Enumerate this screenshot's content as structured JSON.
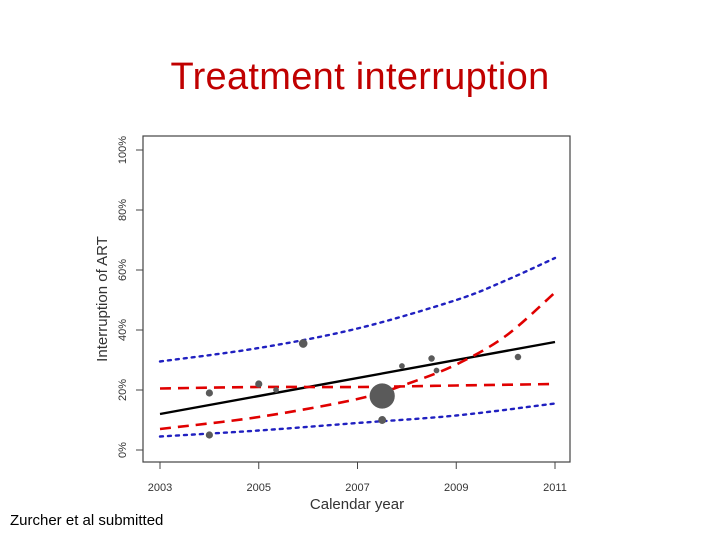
{
  "slide": {
    "title": "Treatment interruption",
    "caption": "Zurcher et al submitted"
  },
  "chart_data": {
    "type": "scatter",
    "xlabel": "Calendar year",
    "ylabel": "Interruption of ART",
    "xlim": [
      2003,
      2011
    ],
    "ylim": [
      0,
      100
    ],
    "x_ticks": [
      2003,
      2005,
      2007,
      2009,
      2011
    ],
    "x_tick_labels": [
      "2003",
      "2005",
      "2007",
      "2009",
      "2011"
    ],
    "y_ticks": [
      0,
      20,
      40,
      60,
      80,
      100
    ],
    "y_tick_labels": [
      "0%",
      "20%",
      "40%",
      "60%",
      "80%",
      "100%"
    ],
    "points": [
      {
        "x": 2004.0,
        "y": 19,
        "size": 1
      },
      {
        "x": 2004.0,
        "y": 5,
        "size": 1
      },
      {
        "x": 2005.0,
        "y": 22,
        "size": 1
      },
      {
        "x": 2005.35,
        "y": 20,
        "size": 0.8
      },
      {
        "x": 2005.9,
        "y": 35.5,
        "size": 1.2
      },
      {
        "x": 2007.5,
        "y": 18,
        "size": 3.5
      },
      {
        "x": 2007.5,
        "y": 10,
        "size": 1.1
      },
      {
        "x": 2007.9,
        "y": 28,
        "size": 0.8
      },
      {
        "x": 2008.5,
        "y": 30.5,
        "size": 0.9
      },
      {
        "x": 2008.6,
        "y": 26.5,
        "size": 0.8
      },
      {
        "x": 2010.25,
        "y": 31,
        "size": 0.9
      }
    ],
    "series": [
      {
        "name": "Fitted trend",
        "style": "solid",
        "color": "#000000",
        "x": [
          2003,
          2011
        ],
        "values": [
          12,
          36
        ]
      },
      {
        "name": "Upper confidence limit",
        "style": "dashed",
        "color": "#e00000",
        "x": [
          2003,
          2005,
          2007,
          2008,
          2009,
          2010,
          2011
        ],
        "values": [
          7,
          11,
          17,
          22,
          28.5,
          38,
          52.5
        ]
      },
      {
        "name": "Lower confidence limit",
        "style": "dashed",
        "color": "#e00000",
        "x": [
          2003,
          2005,
          2007,
          2009,
          2011
        ],
        "values": [
          20.5,
          21,
          21,
          21.5,
          22
        ]
      },
      {
        "name": "Upper prediction limit",
        "style": "dotted",
        "color": "#2020c0",
        "x": [
          2003,
          2005,
          2007,
          2009,
          2010,
          2011
        ],
        "values": [
          29.5,
          34,
          40.5,
          50,
          56.5,
          64
        ]
      },
      {
        "name": "Lower prediction limit",
        "style": "dotted",
        "color": "#2020c0",
        "x": [
          2003,
          2005,
          2007,
          2009,
          2011
        ],
        "values": [
          4.5,
          6.5,
          9,
          11.5,
          15.5
        ]
      }
    ]
  }
}
